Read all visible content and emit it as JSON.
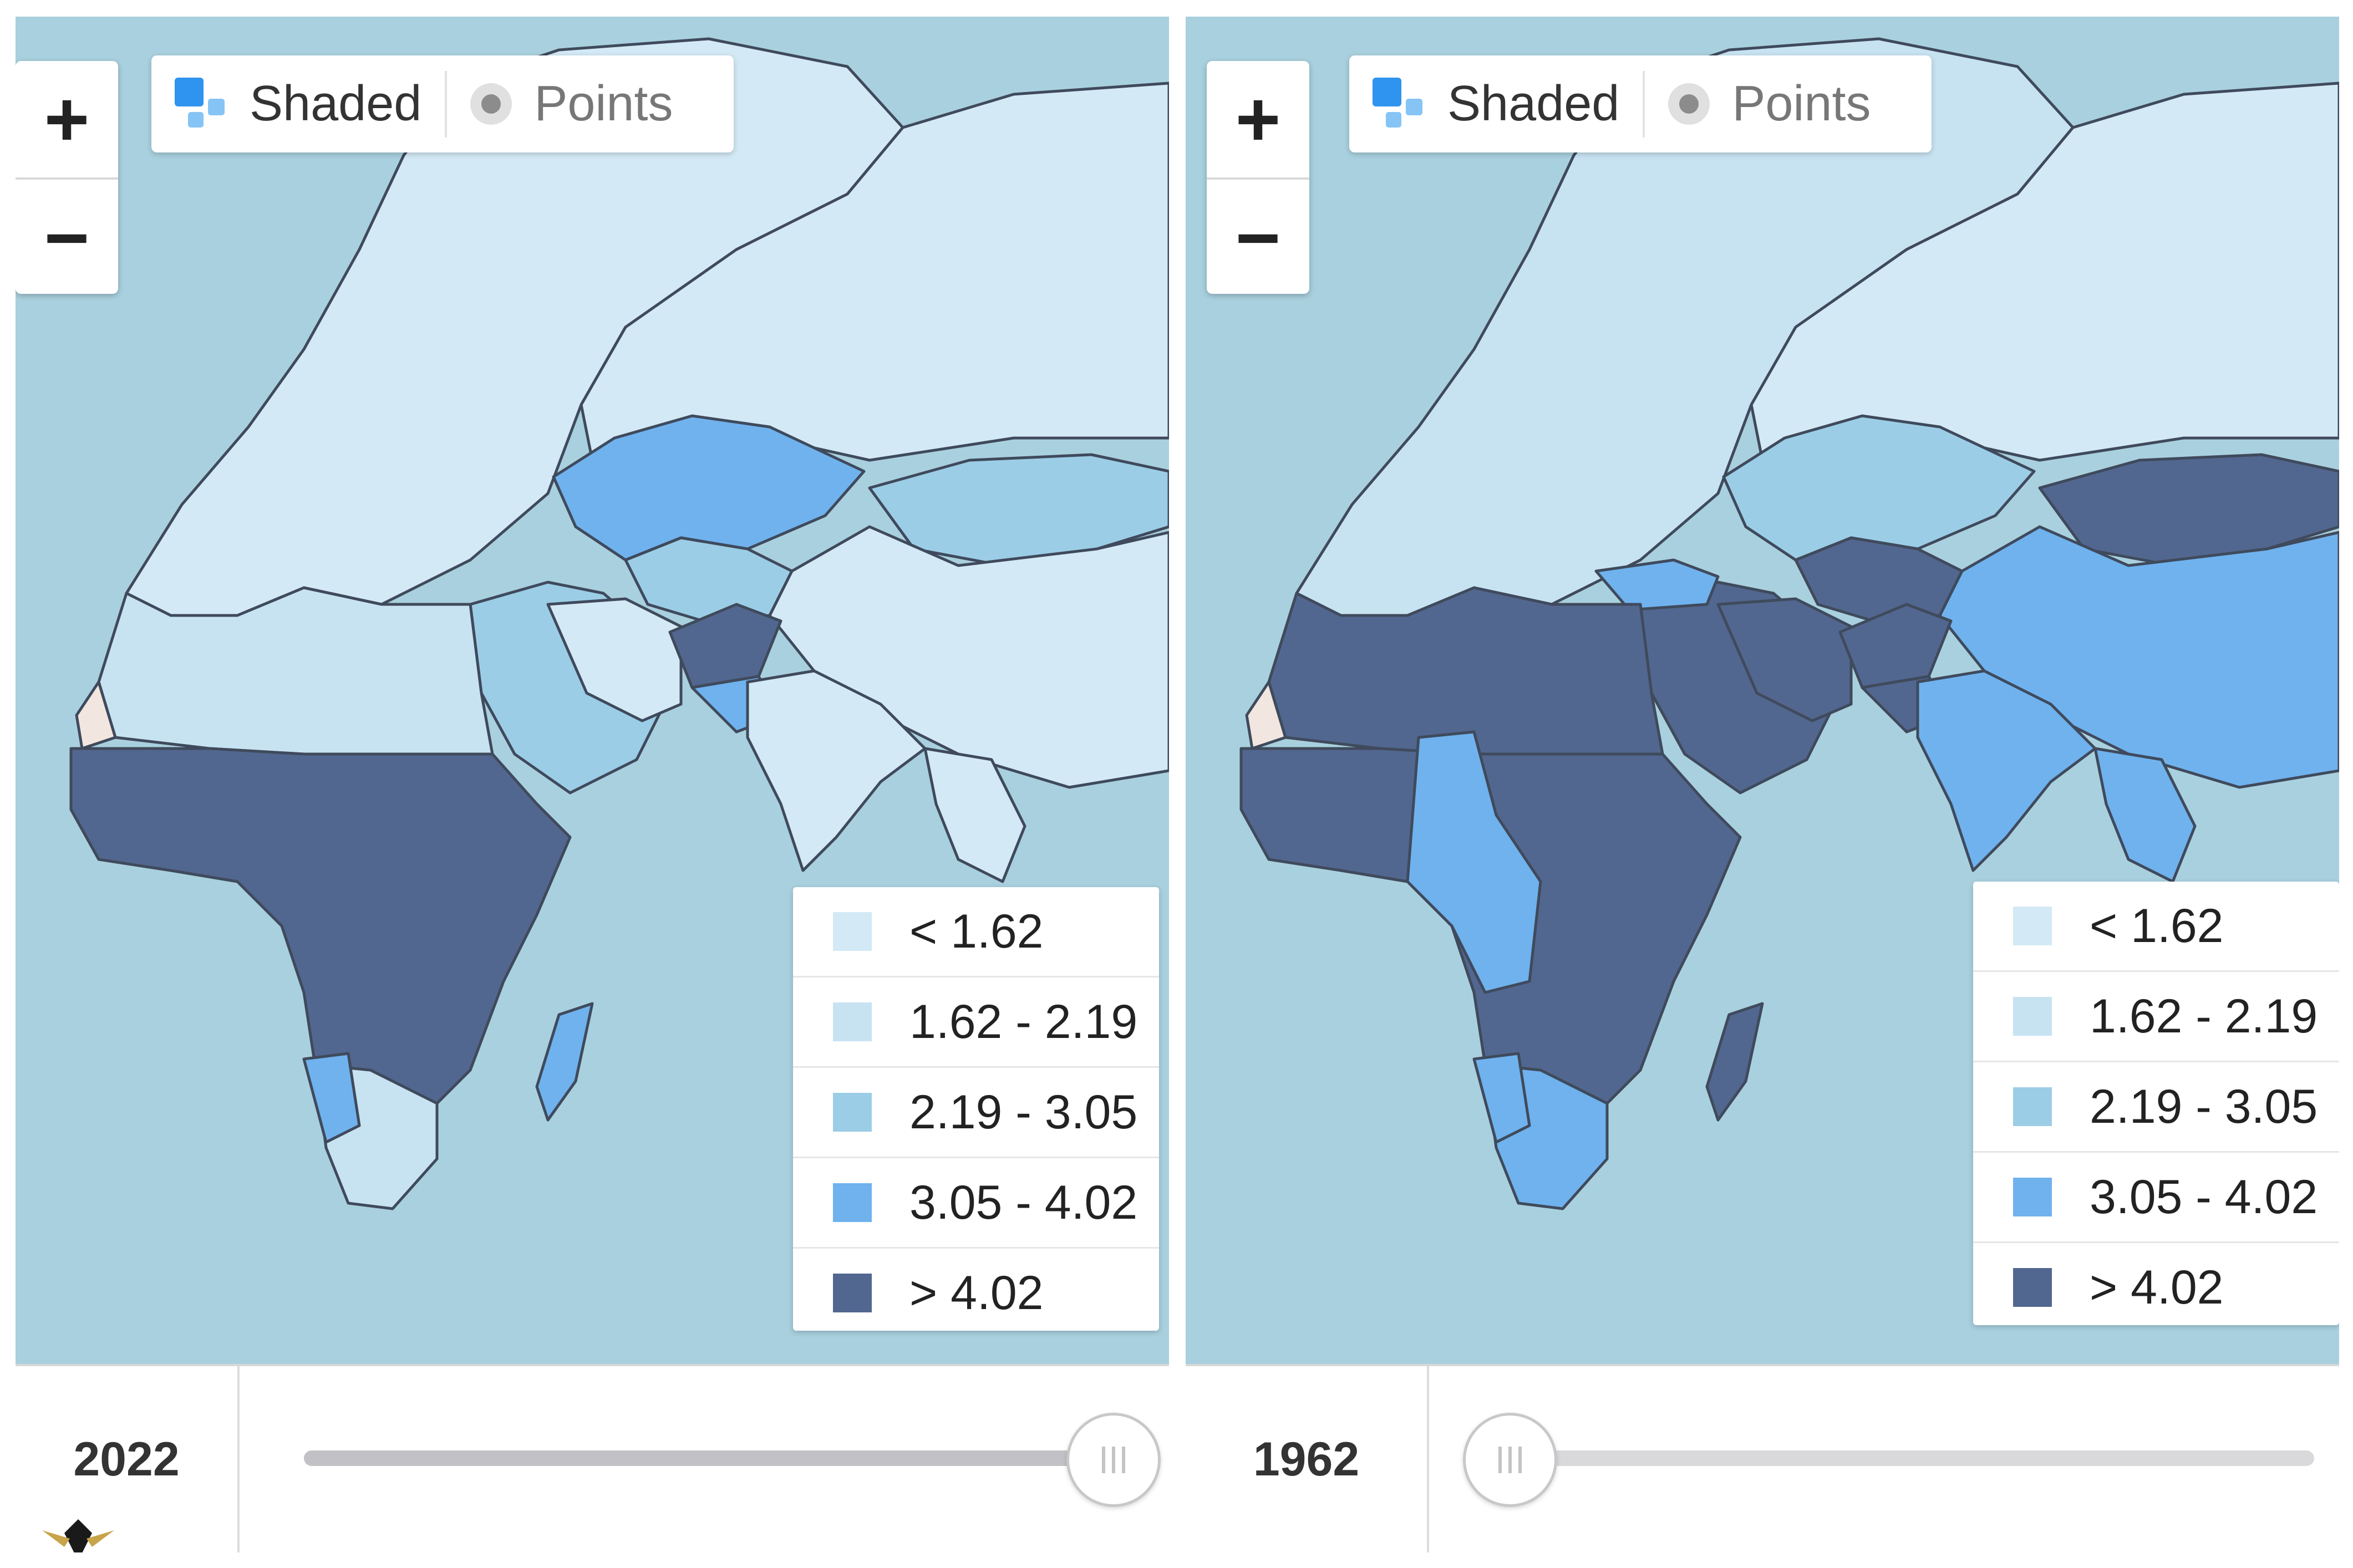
{
  "colors": {
    "water": "#a9d0de",
    "lt_162": "#d3e9f5",
    "b162_219": "#c7e3f2",
    "b219_305": "#9ccde6",
    "b305_402": "#6fb2ee",
    "gt_402": "#52678f",
    "sahara_land": "#f2e6e0"
  },
  "panels": [
    {
      "year": "2022",
      "slider_position": 1.0,
      "zoom": {
        "in_label": "+",
        "out_label": "−"
      },
      "toggle": {
        "shaded_label": "Shaded",
        "points_label": "Points",
        "selected": "Shaded"
      },
      "legend": [
        {
          "label": "< 1.62",
          "color": "#d3e9f5"
        },
        {
          "label": "1.62 - 2.19",
          "color": "#c7e3f2"
        },
        {
          "label": "2.19 - 3.05",
          "color": "#9ccde6"
        },
        {
          "label": "3.05 - 4.02",
          "color": "#6fb2ee"
        },
        {
          "label": "> 4.02",
          "color": "#52678f"
        }
      ]
    },
    {
      "year": "1962",
      "slider_position": 0.0,
      "zoom": {
        "in_label": "+",
        "out_label": "−"
      },
      "toggle": {
        "shaded_label": "Shaded",
        "points_label": "Points",
        "selected": "Shaded"
      },
      "legend": [
        {
          "label": "< 1.62",
          "color": "#d3e9f5"
        },
        {
          "label": "1.62 - 2.19",
          "color": "#c7e3f2"
        },
        {
          "label": "2.19 - 3.05",
          "color": "#9ccde6"
        },
        {
          "label": "3.05 - 4.02",
          "color": "#6fb2ee"
        },
        {
          "label": "> 4.02",
          "color": "#52678f"
        }
      ]
    }
  ]
}
